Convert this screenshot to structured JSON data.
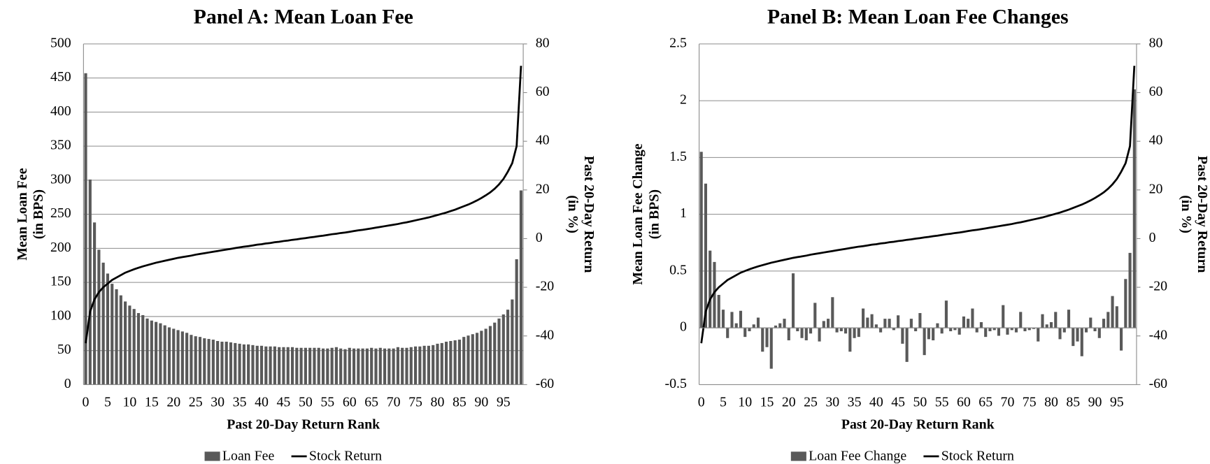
{
  "chart_data": [
    {
      "type": "bar",
      "title": "Panel A: Mean Loan Fee",
      "xlabel": "Past 20-Day Return Rank",
      "ylabel": [
        "Mean Loan Fee",
        "(in BPS)"
      ],
      "y2label": [
        "Past 20-Day Return",
        "(in %)"
      ],
      "categories": [
        0,
        null,
        null,
        null,
        null,
        5,
        null,
        null,
        null,
        null,
        10,
        null,
        null,
        null,
        null,
        15,
        null,
        null,
        null,
        null,
        20,
        null,
        null,
        null,
        null,
        25,
        null,
        null,
        null,
        null,
        30,
        null,
        null,
        null,
        null,
        35,
        null,
        null,
        null,
        null,
        40,
        null,
        null,
        null,
        null,
        45,
        null,
        null,
        null,
        null,
        50,
        null,
        null,
        null,
        null,
        55,
        null,
        null,
        null,
        null,
        60,
        null,
        null,
        null,
        null,
        65,
        null,
        null,
        null,
        null,
        70,
        null,
        null,
        null,
        null,
        75,
        null,
        null,
        null,
        null,
        80,
        null,
        null,
        null,
        null,
        85,
        null,
        null,
        null,
        null,
        90,
        null,
        null,
        null,
        null,
        95,
        null,
        null,
        null,
        null
      ],
      "series": [
        {
          "name": "Loan Fee",
          "color": "#595959",
          "values": [
            457,
            301,
            238,
            198,
            179,
            163,
            148,
            140,
            131,
            122,
            116,
            111,
            105,
            102,
            97,
            94,
            92,
            90,
            87,
            84,
            82,
            80,
            78,
            76,
            73,
            71,
            70,
            68,
            67,
            66,
            64,
            63,
            63,
            62,
            61,
            60,
            59,
            59,
            58,
            57,
            57,
            56,
            56,
            56,
            55,
            55,
            55,
            55,
            54,
            54,
            54,
            54,
            54,
            54,
            53,
            53,
            54,
            55,
            53,
            52,
            54,
            53,
            53,
            53,
            53,
            54,
            53,
            54,
            53,
            53,
            53,
            55,
            54,
            54,
            55,
            56,
            56,
            57,
            57,
            58,
            60,
            61,
            63,
            64,
            65,
            66,
            70,
            72,
            74,
            76,
            79,
            82,
            86,
            91,
            97,
            103,
            110,
            125,
            184,
            285
          ]
        },
        {
          "name": "Stock Return",
          "color": "#000000",
          "axis": "y2",
          "type": "line",
          "values": [
            -43,
            -30,
            -25,
            -22,
            -20,
            -18.5,
            -17,
            -16,
            -15,
            -14,
            -13.3,
            -12.6,
            -12,
            -11.4,
            -10.9,
            -10.4,
            -9.9,
            -9.5,
            -9.1,
            -8.7,
            -8.3,
            -7.9,
            -7.6,
            -7.3,
            -7,
            -6.6,
            -6.3,
            -6,
            -5.7,
            -5.4,
            -5.1,
            -4.8,
            -4.5,
            -4.2,
            -3.9,
            -3.6,
            -3.3,
            -3.1,
            -2.8,
            -2.5,
            -2.3,
            -2,
            -1.8,
            -1.5,
            -1.3,
            -1,
            -0.8,
            -0.5,
            -0.3,
            0,
            0.2,
            0.5,
            0.7,
            1,
            1.2,
            1.5,
            1.8,
            2,
            2.3,
            2.5,
            2.8,
            3.1,
            3.4,
            3.6,
            3.9,
            4.2,
            4.5,
            4.8,
            5.1,
            5.4,
            5.7,
            6,
            6.4,
            6.7,
            7.1,
            7.5,
            7.9,
            8.3,
            8.7,
            9.2,
            9.7,
            10.2,
            10.7,
            11.3,
            11.9,
            12.6,
            13.3,
            14,
            14.8,
            15.7,
            16.7,
            17.8,
            19,
            20.5,
            22.3,
            24.5,
            27.5,
            31,
            38,
            71
          ]
        }
      ],
      "ylim": [
        0,
        500
      ],
      "yticks": [
        0,
        50,
        100,
        150,
        200,
        250,
        300,
        350,
        400,
        450,
        500
      ],
      "y2lim": [
        -60,
        80
      ],
      "y2ticks": [
        -60,
        -40,
        -20,
        0,
        20,
        40,
        60,
        80
      ],
      "grid": true
    },
    {
      "type": "bar",
      "title": "Panel B: Mean Loan Fee Changes",
      "xlabel": "Past 20-Day Return Rank",
      "ylabel": [
        "Mean Loan Fee Change",
        "(in BPS)"
      ],
      "y2label": [
        "Past 20-Day Return",
        "(in %)"
      ],
      "categories": [
        0,
        null,
        null,
        null,
        null,
        5,
        null,
        null,
        null,
        null,
        10,
        null,
        null,
        null,
        null,
        15,
        null,
        null,
        null,
        null,
        20,
        null,
        null,
        null,
        null,
        25,
        null,
        null,
        null,
        null,
        30,
        null,
        null,
        null,
        null,
        35,
        null,
        null,
        null,
        null,
        40,
        null,
        null,
        null,
        null,
        45,
        null,
        null,
        null,
        null,
        50,
        null,
        null,
        null,
        null,
        55,
        null,
        null,
        null,
        null,
        60,
        null,
        null,
        null,
        null,
        65,
        null,
        null,
        null,
        null,
        70,
        null,
        null,
        null,
        null,
        75,
        null,
        null,
        null,
        null,
        80,
        null,
        null,
        null,
        null,
        85,
        null,
        null,
        null,
        null,
        90,
        null,
        null,
        null,
        null,
        95,
        null,
        null,
        null,
        null
      ],
      "series": [
        {
          "name": "Loan Fee Change",
          "color": "#595959",
          "values": [
            1.55,
            1.27,
            0.68,
            0.58,
            0.29,
            0.16,
            -0.09,
            0.14,
            0.04,
            0.15,
            -0.08,
            -0.03,
            0.03,
            0.09,
            -0.21,
            -0.17,
            -0.36,
            0.02,
            0.04,
            0.08,
            -0.11,
            0.48,
            -0.03,
            -0.09,
            -0.11,
            -0.05,
            0.22,
            -0.12,
            0.06,
            0.08,
            0.27,
            -0.04,
            -0.03,
            -0.05,
            -0.21,
            -0.09,
            -0.08,
            0.17,
            0.09,
            0.12,
            0.03,
            -0.04,
            0.08,
            0.08,
            -0.02,
            0.11,
            -0.14,
            -0.3,
            0.08,
            -0.03,
            0.13,
            -0.24,
            -0.1,
            -0.11,
            0.04,
            -0.05,
            0.24,
            -0.03,
            -0.02,
            -0.06,
            0.1,
            0.08,
            0.17,
            -0.04,
            0.05,
            -0.08,
            -0.03,
            -0.02,
            -0.07,
            0.2,
            -0.06,
            -0.02,
            -0.04,
            0.14,
            -0.03,
            -0.02,
            -0.01,
            -0.12,
            0.12,
            0.03,
            0.05,
            0.14,
            -0.1,
            -0.04,
            0.16,
            -0.16,
            -0.12,
            -0.25,
            -0.04,
            0.09,
            -0.03,
            -0.09,
            0.08,
            0.14,
            0.28,
            0.19,
            -0.2,
            0.43,
            0.66,
            2.1
          ]
        },
        {
          "name": "Stock Return",
          "color": "#000000",
          "axis": "y2",
          "type": "line",
          "values": [
            -43,
            -30,
            -25,
            -22,
            -20,
            -18.5,
            -17,
            -16,
            -15,
            -14,
            -13.3,
            -12.6,
            -12,
            -11.4,
            -10.9,
            -10.4,
            -9.9,
            -9.5,
            -9.1,
            -8.7,
            -8.3,
            -7.9,
            -7.6,
            -7.3,
            -7,
            -6.6,
            -6.3,
            -6,
            -5.7,
            -5.4,
            -5.1,
            -4.8,
            -4.5,
            -4.2,
            -3.9,
            -3.6,
            -3.3,
            -3.1,
            -2.8,
            -2.5,
            -2.3,
            -2,
            -1.8,
            -1.5,
            -1.3,
            -1,
            -0.8,
            -0.5,
            -0.3,
            0,
            0.2,
            0.5,
            0.7,
            1,
            1.2,
            1.5,
            1.8,
            2,
            2.3,
            2.5,
            2.8,
            3.1,
            3.4,
            3.6,
            3.9,
            4.2,
            4.5,
            4.8,
            5.1,
            5.4,
            5.7,
            6,
            6.4,
            6.7,
            7.1,
            7.5,
            7.9,
            8.3,
            8.7,
            9.2,
            9.7,
            10.2,
            10.7,
            11.3,
            11.9,
            12.6,
            13.3,
            14,
            14.8,
            15.7,
            16.7,
            17.8,
            19,
            20.5,
            22.3,
            24.5,
            27.5,
            31,
            38,
            71
          ]
        }
      ],
      "ylim": [
        -0.5,
        2.5
      ],
      "yticks": [
        -0.5,
        0,
        0.5,
        1,
        1.5,
        2,
        2.5
      ],
      "y2lim": [
        -60,
        80
      ],
      "y2ticks": [
        -60,
        -40,
        -20,
        0,
        20,
        40,
        60,
        80
      ],
      "grid": true
    }
  ]
}
